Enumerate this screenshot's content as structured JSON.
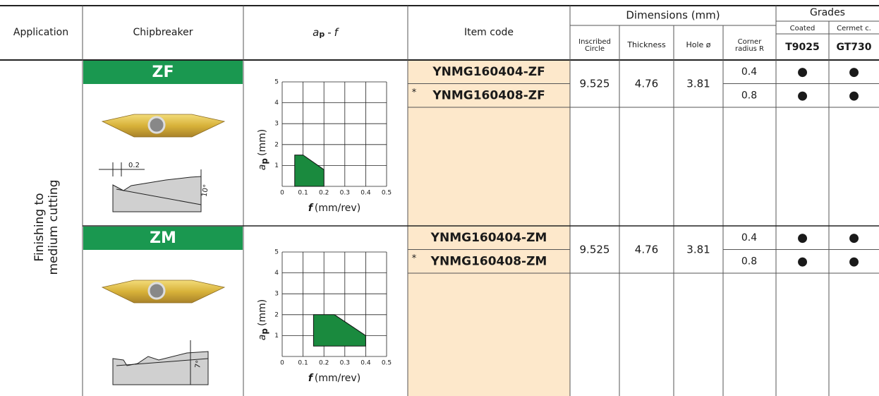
{
  "header": {
    "application": "Application",
    "chipbreaker": "Chipbreaker",
    "ap_f": {
      "a": "a",
      "sub": "p",
      "dash": "-",
      "f": "f"
    },
    "item_code": "Item code",
    "dimensions": "Dimensions (mm)",
    "dim_columns": [
      [
        "Inscribed",
        "Circle"
      ],
      [
        "Thickness"
      ],
      [
        "Hole ø"
      ],
      [
        "Corner",
        "radius R"
      ]
    ],
    "grades": "Grades",
    "grade_types": [
      "Coated",
      "Cermet c."
    ],
    "grade_codes": [
      "T9025",
      "GT730"
    ]
  },
  "application": [
    "Finishing to",
    "medium cutting"
  ],
  "sections": [
    {
      "chipbreaker": "ZF",
      "profile_labels": [
        "0.2",
        "10°"
      ],
      "chart": {
        "xticks": [
          0,
          0.1,
          0.2,
          0.3,
          0.4,
          0.5
        ],
        "yticks": [
          1,
          2,
          3,
          4,
          5
        ],
        "xlabel": {
          "symbol": "f",
          "unit": "(mm/rev)"
        },
        "ylabel": {
          "symbol": "a",
          "sub": "p",
          "unit": "(mm)"
        },
        "region": {
          "x": [
            0.06,
            0.06,
            0.1,
            0.2,
            0.2
          ],
          "y": [
            0,
            1.5,
            1.5,
            0.8,
            0
          ]
        }
      },
      "dimensions": {
        "inscribed": 9.525,
        "thickness": 4.76,
        "hole": 3.81
      },
      "items": [
        {
          "code": "YNMG160404-ZF",
          "corner": 0.4,
          "grades": [
            "●",
            "●"
          ]
        },
        {
          "star": "*",
          "code": "YNMG160408-ZF",
          "corner": 0.8,
          "grades": [
            "●",
            "●"
          ]
        }
      ]
    },
    {
      "chipbreaker": "ZM",
      "profile_labels": [
        "7°"
      ],
      "chart": {
        "xticks": [
          0,
          0.1,
          0.2,
          0.3,
          0.4,
          0.5
        ],
        "yticks": [
          1,
          2,
          3,
          4,
          5
        ],
        "xlabel": {
          "symbol": "f",
          "unit": "(mm/rev)"
        },
        "ylabel": {
          "symbol": "a",
          "sub": "p",
          "unit": "(mm)"
        },
        "region": {
          "x": [
            0.15,
            0.15,
            0.25,
            0.4,
            0.4
          ],
          "y": [
            0.5,
            2,
            2,
            1,
            0.5
          ]
        }
      },
      "dimensions": {
        "inscribed": 9.525,
        "thickness": 4.76,
        "hole": 3.81
      },
      "items": [
        {
          "code": "YNMG160404-ZM",
          "corner": 0.4,
          "grades": [
            "●",
            "●"
          ]
        },
        {
          "star": "*",
          "code": "YNMG160408-ZM",
          "corner": 0.8,
          "grades": [
            "●",
            "●"
          ]
        }
      ]
    }
  ]
}
